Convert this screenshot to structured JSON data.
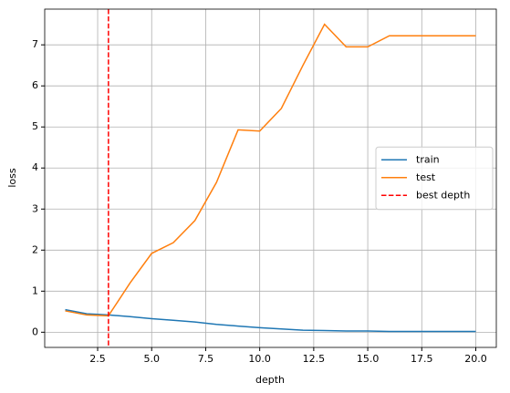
{
  "chart_data": {
    "type": "line",
    "x": [
      1,
      2,
      3,
      4,
      5,
      6,
      7,
      8,
      9,
      10,
      11,
      12,
      13,
      14,
      15,
      16,
      17,
      18,
      19,
      20
    ],
    "series": [
      {
        "name": "train",
        "color": "#1f77b4",
        "values": [
          0.55,
          0.45,
          0.42,
          0.38,
          0.33,
          0.29,
          0.25,
          0.19,
          0.15,
          0.11,
          0.08,
          0.05,
          0.04,
          0.03,
          0.03,
          0.02,
          0.02,
          0.02,
          0.02,
          0.02
        ]
      },
      {
        "name": "test",
        "color": "#ff7f0e",
        "values": [
          0.52,
          0.42,
          0.4,
          1.2,
          1.92,
          2.18,
          2.72,
          3.65,
          4.93,
          4.9,
          5.45,
          6.5,
          7.5,
          6.95,
          6.95,
          7.22,
          7.22,
          7.22,
          7.22,
          7.22
        ]
      }
    ],
    "vlines": [
      {
        "name": "best depth",
        "x": 3,
        "color": "#ff0000",
        "dashed": true
      }
    ],
    "xlabel": "depth",
    "ylabel": "loss",
    "xlim": [
      0.05,
      20.95
    ],
    "xticks": [
      {
        "value": 2.5,
        "label": "2.5"
      },
      {
        "value": 5,
        "label": "5.0"
      },
      {
        "value": 7.5,
        "label": "7.5"
      },
      {
        "value": 10,
        "label": "10.0"
      },
      {
        "value": 12.5,
        "label": "12.5"
      },
      {
        "value": 15,
        "label": "15.0"
      },
      {
        "value": 17.5,
        "label": "17.5"
      },
      {
        "value": 20,
        "label": "20.0"
      }
    ],
    "ylim": [
      -0.37,
      7.87
    ],
    "yticks": [
      0,
      1,
      2,
      3,
      4,
      5,
      6,
      7
    ],
    "grid": true,
    "legend": "center right"
  }
}
